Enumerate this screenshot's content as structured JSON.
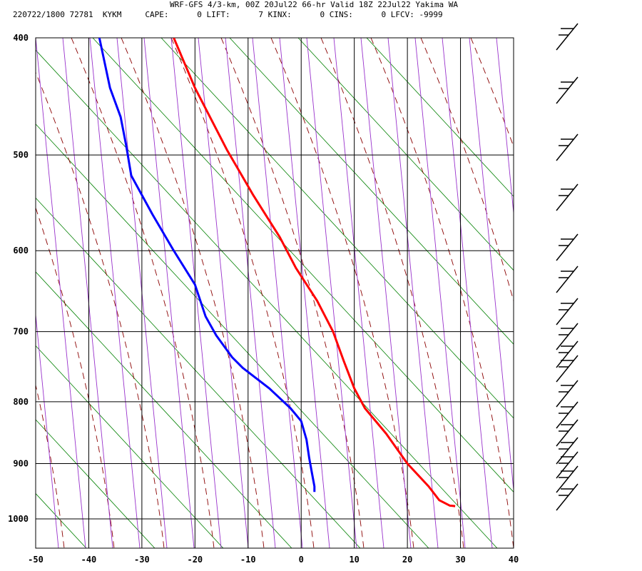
{
  "header": {
    "title": "WRF-GFS 4/3-km, 00Z 20Jul22 66-hr Valid 18Z 22Jul22 Yakima WA",
    "info": "220722/1800 72781  KYKM     CAPE:      0 LIFT:      7 KINX:      0 CINS:      0 LFCV: -9999"
  },
  "chart_data": {
    "type": "line",
    "title": "WRF-GFS 4/3-km, 00Z 20Jul22 66-hr Valid 18Z 22Jul22 Yakima WA",
    "xlabel": "",
    "ylabel": "",
    "x_ticks": [
      "-50",
      "-40",
      "-30",
      "-20",
      "-10",
      "0",
      "10",
      "20",
      "30",
      "40"
    ],
    "y_ticks": [
      "400",
      "500",
      "600",
      "700",
      "800",
      "900",
      "1000"
    ],
    "y_tick_values": [
      400,
      500,
      600,
      700,
      800,
      900,
      1000
    ],
    "xlim": [
      -50,
      40
    ],
    "ylim": [
      1040,
      400
    ],
    "x_unit_note": "temperature (°C) read along the bottom axis",
    "grid": true,
    "series": [
      {
        "color": "#ff0000",
        "points": [
          [
            -24,
            400
          ],
          [
            -20,
            440
          ],
          [
            -14,
            495
          ],
          [
            -9,
            540
          ],
          [
            -4,
            585
          ],
          [
            -1,
            620
          ],
          [
            3,
            660
          ],
          [
            6,
            700
          ],
          [
            8,
            740
          ],
          [
            10,
            780
          ],
          [
            12,
            810
          ],
          [
            16,
            850
          ],
          [
            20,
            900
          ],
          [
            24,
            940
          ],
          [
            26,
            965
          ],
          [
            28,
            975
          ],
          [
            29,
            976
          ]
        ]
      },
      {
        "color": "#0000ff",
        "points": [
          [
            -38,
            400
          ],
          [
            -36,
            440
          ],
          [
            -34,
            465
          ],
          [
            -33,
            490
          ],
          [
            -32,
            520
          ],
          [
            -28,
            560
          ],
          [
            -24,
            600
          ],
          [
            -20,
            640
          ],
          [
            -18,
            680
          ],
          [
            -16,
            705
          ],
          [
            -13,
            735
          ],
          [
            -11,
            750
          ],
          [
            -6,
            780
          ],
          [
            -2,
            810
          ],
          [
            0,
            830
          ],
          [
            1,
            860
          ],
          [
            1.5,
            890
          ],
          [
            2,
            915
          ],
          [
            2.5,
            940
          ],
          [
            2.5,
            950
          ]
        ]
      }
    ]
  },
  "colors": {
    "grid": "#000000",
    "isotherm_skewed": "#9932cc",
    "dry_adiabat": "#8b0000",
    "moist_line": "#008000",
    "temperature": "#ff0000",
    "dewpoint": "#0000ff",
    "wind_barb": "#000000"
  }
}
